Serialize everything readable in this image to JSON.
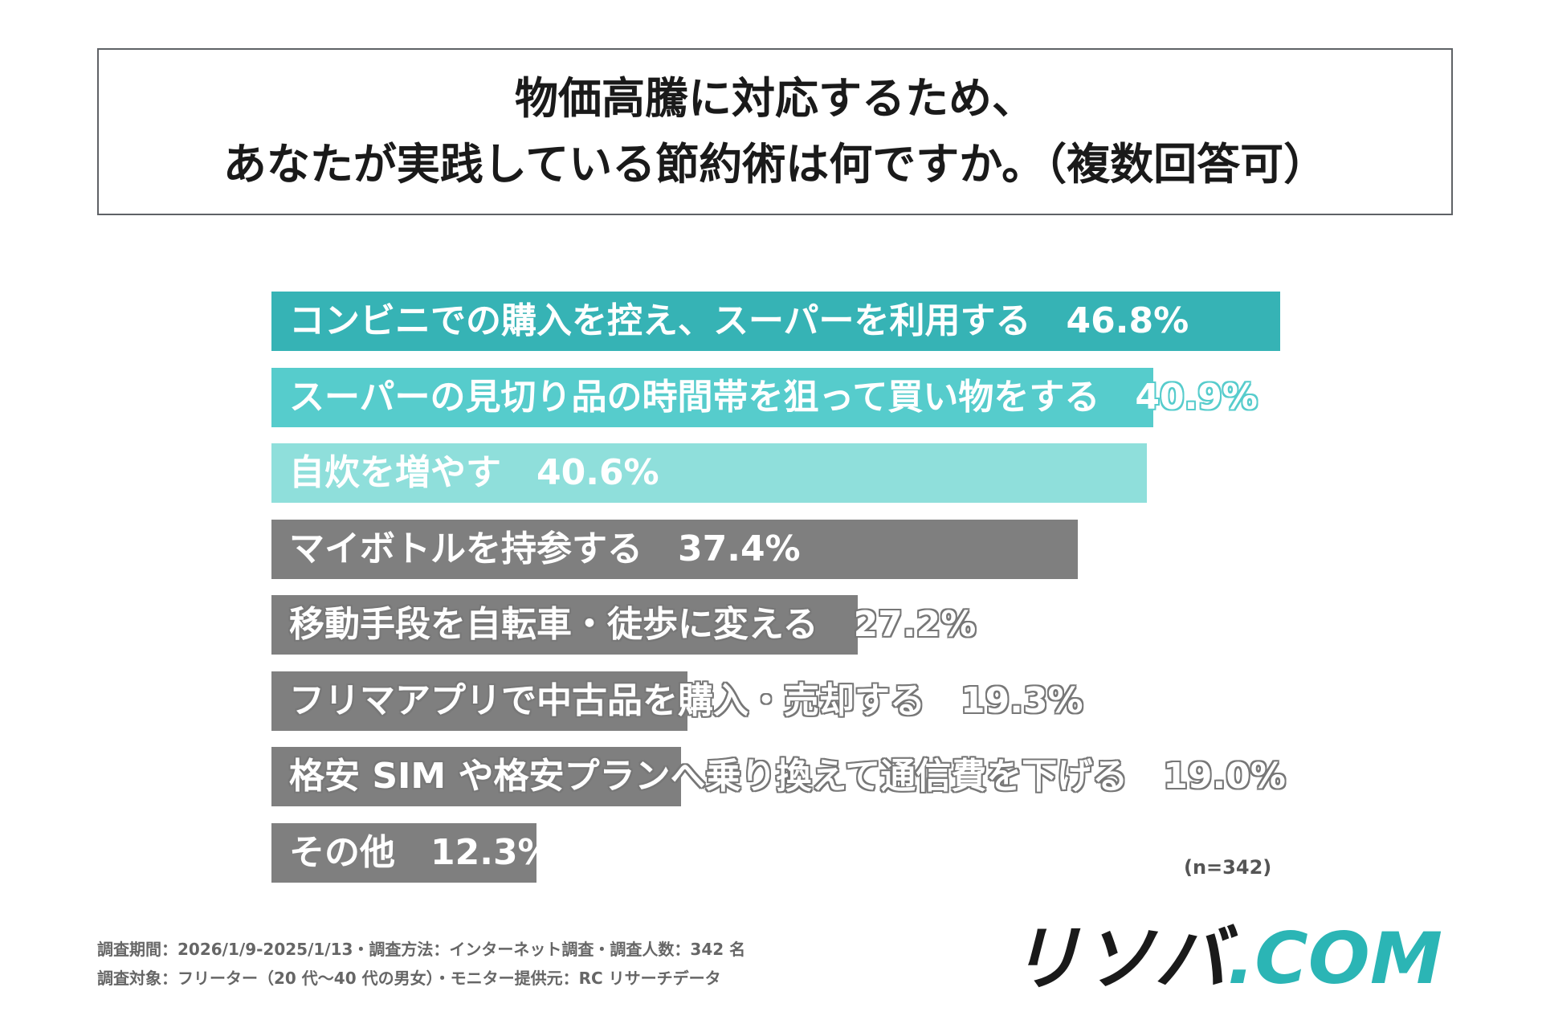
{
  "header": {
    "title_line1": "物価高騰に対応するため、",
    "title_line2": "あなたが実践している節約術は何ですか。（複数回答可）"
  },
  "chart_data": {
    "type": "bar",
    "orientation": "horizontal",
    "categories": [
      "コンビニでの購入を控え、スーパーを利用する",
      "スーパーの見切り品の時間帯を狙って買い物をする",
      "自炊を増やす",
      "マイボトルを持参する",
      "移動手段を自転車・徒歩に変える",
      "フリマアプリで中古品を購入・売却する",
      "格安 SIM や格安プランへ乗り換えて通信費を下げる",
      "その他"
    ],
    "values": [
      46.8,
      40.9,
      40.6,
      37.4,
      27.2,
      19.3,
      19.0,
      12.3
    ],
    "value_labels": [
      "46.8%",
      "40.9%",
      "40.6%",
      "37.4%",
      "27.2%",
      "19.3%",
      "19.0%",
      "12.3%"
    ],
    "colors": [
      "#36b3b5",
      "#56cccc",
      "#8fdfdb",
      "#7f7f7f",
      "#7f7f7f",
      "#7f7f7f",
      "#7f7f7f",
      "#7f7f7f"
    ],
    "xlim": [
      0,
      46.8
    ],
    "sample_note": "(n=342)"
  },
  "footer": {
    "line1": "調査期間：2026/1/9-2025/1/13・調査方法：インターネット調査・調査人数：342 名",
    "line2": "調査対象：フリーター（20 代〜40 代の男女）・モニター提供元：RC リサーチデータ"
  },
  "logo": {
    "text": "リソバ.COM",
    "main_text": "リソバ",
    "accent_text": ".COM",
    "main_color": "#1a1a1a",
    "accent_color": "#2bb5b5"
  }
}
